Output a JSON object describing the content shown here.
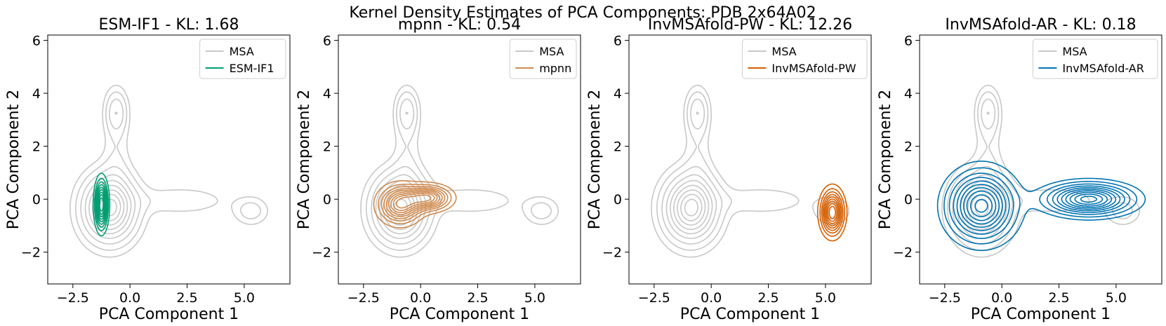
{
  "figure": {
    "suptitle": "Kernel Density Estimates of PCA Components: PDB 2x64A02"
  },
  "chart_data": [
    {
      "type": "contour",
      "title": "ESM-IF1 - KL: 1.68",
      "xlabel": "PCA Component 1",
      "ylabel": "PCA Component 2",
      "xlim": [
        -3.6,
        7.0
      ],
      "ylim": [
        -3.2,
        6.2
      ],
      "xticks": [
        -2.5,
        0.0,
        2.5,
        5.0
      ],
      "xtick_labels": [
        "−2.5",
        "0.0",
        "2.5",
        "5.0"
      ],
      "yticks": [
        -2,
        0,
        2,
        4,
        6
      ],
      "ytick_labels": [
        "−2",
        "0",
        "2",
        "4",
        "6"
      ],
      "legend_position": "top-right",
      "series": [
        {
          "name": "MSA",
          "color": "#c8c8c8"
        },
        {
          "name": "ESM-IF1",
          "color": "#029e73",
          "peaks": [
            {
              "x": -1.25,
              "y": -0.2,
              "sx": 0.17,
              "sy": 0.55
            }
          ]
        }
      ]
    },
    {
      "type": "contour",
      "title": "mpnn - KL: 0.54",
      "xlabel": "PCA Component 1",
      "ylabel": "PCA Component 2",
      "xlim": [
        -3.6,
        7.0
      ],
      "ylim": [
        -3.2,
        6.2
      ],
      "xticks": [
        -2.5,
        0.0,
        2.5,
        5.0
      ],
      "xtick_labels": [
        "−2.5",
        "0.0",
        "2.5",
        "5.0"
      ],
      "yticks": [
        -2,
        0,
        2,
        4,
        6
      ],
      "ytick_labels": [
        "−2",
        "0",
        "2",
        "4",
        "6"
      ],
      "legend_position": "top-right",
      "series": [
        {
          "name": "MSA",
          "color": "#c8c8c8"
        },
        {
          "name": "mpnn",
          "color": "#d08a4e",
          "peaks": [
            {
              "x": -0.9,
              "y": -0.2,
              "sx": 0.55,
              "sy": 0.42
            },
            {
              "x": 0.3,
              "y": 0.05,
              "sx": 0.6,
              "sy": 0.28
            }
          ]
        }
      ]
    },
    {
      "type": "contour",
      "title": "InvMSAfold-PW - KL: 12.26",
      "xlabel": "PCA Component 1",
      "ylabel": "PCA Component 2",
      "xlim": [
        -3.6,
        7.0
      ],
      "ylim": [
        -3.2,
        6.2
      ],
      "xticks": [
        -2.5,
        0.0,
        2.5,
        5.0
      ],
      "xtick_labels": [
        "−2.5",
        "0.0",
        "2.5",
        "5.0"
      ],
      "yticks": [
        -2,
        0,
        2,
        4,
        6
      ],
      "ytick_labels": [
        "−2",
        "0",
        "2",
        "4",
        "6"
      ],
      "legend_position": "top-right",
      "series": [
        {
          "name": "MSA",
          "color": "#c8c8c8"
        },
        {
          "name": "InvMSAfold-PW",
          "color": "#d55e00",
          "peaks": [
            {
              "x": 5.3,
              "y": -0.5,
              "sx": 0.3,
              "sy": 0.5
            }
          ]
        }
      ]
    },
    {
      "type": "contour",
      "title": "InvMSAfold-AR - KL: 0.18",
      "xlabel": "PCA Component 1",
      "ylabel": "PCA Component 2",
      "xlim": [
        -3.6,
        7.0
      ],
      "ylim": [
        -3.2,
        6.2
      ],
      "xticks": [
        -2.5,
        0.0,
        2.5,
        5.0
      ],
      "xtick_labels": [
        "−2.5",
        "0.0",
        "2.5",
        "5.0"
      ],
      "yticks": [
        -2,
        0,
        2,
        4,
        6
      ],
      "ytick_labels": [
        "−2",
        "0",
        "2",
        "4",
        "6"
      ],
      "legend_position": "top-right",
      "series": [
        {
          "name": "MSA",
          "color": "#c8c8c8"
        },
        {
          "name": "InvMSAfold-AR",
          "color": "#0173b2",
          "peaks": [
            {
              "x": -0.9,
              "y": -0.25,
              "sx": 0.85,
              "sy": 0.75
            },
            {
              "x": 3.8,
              "y": 0.0,
              "sx": 1.1,
              "sy": 0.35
            }
          ]
        }
      ]
    }
  ]
}
